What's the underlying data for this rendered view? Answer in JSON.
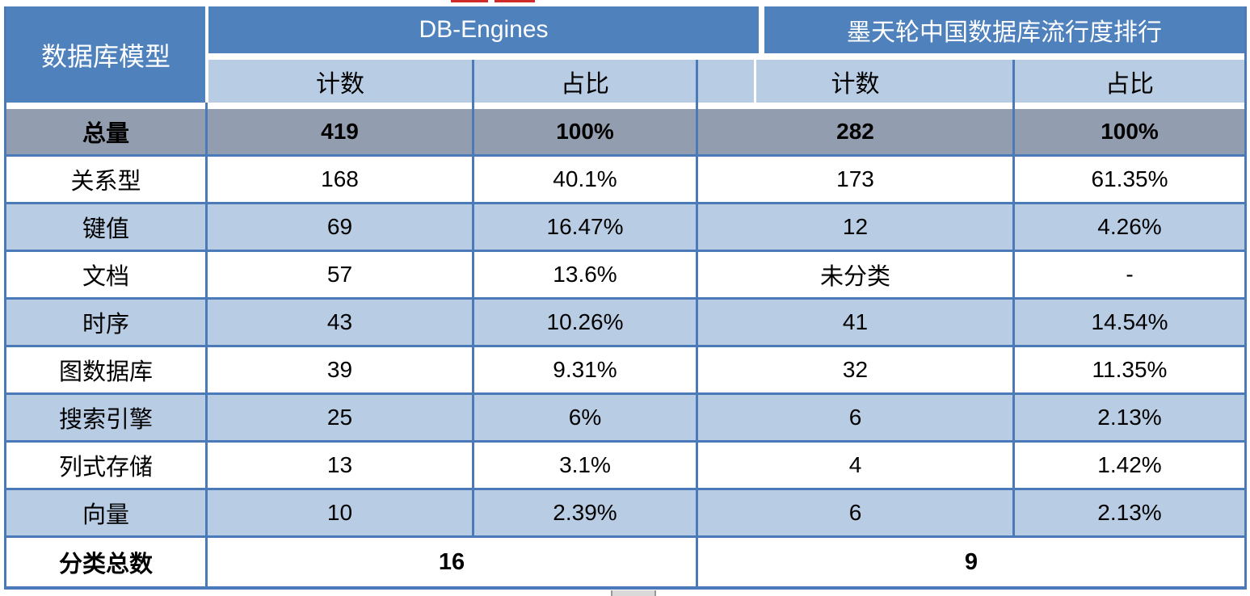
{
  "table": {
    "corner_header": "数据库模型",
    "groups": [
      {
        "label": "DB-Engines"
      },
      {
        "label": "墨天轮中国数据库流行度排行"
      }
    ],
    "sub_headers": [
      "计数",
      "占比",
      "计数",
      "占比"
    ],
    "rows": [
      {
        "label": "总量",
        "cells": [
          "419",
          "100%",
          "282",
          "100%"
        ],
        "variant": "total"
      },
      {
        "label": "关系型",
        "cells": [
          "168",
          "40.1%",
          "173",
          "61.35%"
        ],
        "variant": "white"
      },
      {
        "label": "键值",
        "cells": [
          "69",
          "16.47%",
          "12",
          "4.26%"
        ],
        "variant": "blue"
      },
      {
        "label": "文档",
        "cells": [
          "57",
          "13.6%",
          "未分类",
          "-"
        ],
        "variant": "white"
      },
      {
        "label": "时序",
        "cells": [
          "43",
          "10.26%",
          "41",
          "14.54%"
        ],
        "variant": "blue"
      },
      {
        "label": "图数据库",
        "cells": [
          "39",
          "9.31%",
          "32",
          "11.35%"
        ],
        "variant": "white"
      },
      {
        "label": "搜索引擎",
        "cells": [
          "25",
          "6%",
          "6",
          "2.13%"
        ],
        "variant": "blue"
      },
      {
        "label": "列式存储",
        "cells": [
          "13",
          "3.1%",
          "4",
          "1.42%"
        ],
        "variant": "white"
      },
      {
        "label": "向量",
        "cells": [
          "10",
          "2.39%",
          "6",
          "2.13%"
        ],
        "variant": "blue"
      }
    ],
    "footer": {
      "label": "分类总数",
      "de_total": "16",
      "mt_total": "9"
    }
  },
  "colors": {
    "header_blue": "#4f81bd",
    "light_blue": "#b8cce4",
    "total_row_gray": "#929daf",
    "border_blue": "#4a7ab8",
    "artifact_red": "#cf2b2b"
  },
  "chart_data": {
    "type": "table",
    "title": "数据库模型分类对比：DB-Engines vs 墨天轮中国数据库流行度排行",
    "columns": [
      "数据库模型",
      "DB-Engines 计数",
      "DB-Engines 占比",
      "墨天轮 计数",
      "墨天轮 占比"
    ],
    "rows": [
      [
        "总量",
        "419",
        "100%",
        "282",
        "100%"
      ],
      [
        "关系型",
        "168",
        "40.1%",
        "173",
        "61.35%"
      ],
      [
        "键值",
        "69",
        "16.47%",
        "12",
        "4.26%"
      ],
      [
        "文档",
        "57",
        "13.6%",
        "未分类",
        "-"
      ],
      [
        "时序",
        "43",
        "10.26%",
        "41",
        "14.54%"
      ],
      [
        "图数据库",
        "39",
        "9.31%",
        "32",
        "11.35%"
      ],
      [
        "搜索引擎",
        "25",
        "6%",
        "6",
        "2.13%"
      ],
      [
        "列式存储",
        "13",
        "3.1%",
        "4",
        "1.42%"
      ],
      [
        "向量",
        "10",
        "2.39%",
        "6",
        "2.13%"
      ],
      [
        "分类总数",
        "16",
        "",
        "9",
        ""
      ]
    ]
  }
}
